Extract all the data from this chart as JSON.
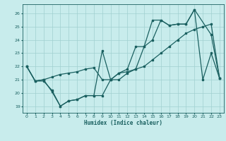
{
  "xlabel": "Humidex (Indice chaleur)",
  "background_color": "#c8ecec",
  "grid_color": "#a0d0d0",
  "line_color": "#1a6060",
  "xlim": [
    -0.5,
    23.5
  ],
  "ylim": [
    18.5,
    26.7
  ],
  "xticks": [
    0,
    1,
    2,
    3,
    4,
    5,
    6,
    7,
    8,
    9,
    10,
    11,
    12,
    13,
    14,
    15,
    16,
    17,
    18,
    19,
    20,
    21,
    22,
    23
  ],
  "yticks": [
    19,
    20,
    21,
    22,
    23,
    24,
    25,
    26
  ],
  "line1_x": [
    0,
    1,
    2,
    3,
    4,
    5,
    6,
    7,
    8,
    9,
    10,
    11,
    12,
    13,
    14,
    15,
    16,
    17,
    18,
    19,
    20,
    22,
    23
  ],
  "line1_y": [
    22.0,
    20.9,
    20.9,
    20.2,
    19.0,
    19.4,
    19.5,
    19.8,
    19.8,
    23.2,
    21.0,
    21.5,
    21.8,
    23.5,
    23.5,
    25.5,
    25.5,
    25.1,
    25.2,
    25.2,
    26.3,
    24.4,
    21.1
  ],
  "line2_x": [
    0,
    1,
    2,
    3,
    4,
    5,
    6,
    7,
    8,
    9,
    10,
    11,
    12,
    13,
    14,
    15,
    16,
    17,
    18,
    19,
    20,
    21,
    22,
    23
  ],
  "line2_y": [
    22.0,
    20.9,
    21.0,
    20.1,
    19.0,
    19.4,
    19.5,
    19.8,
    19.8,
    19.8,
    21.0,
    21.0,
    21.5,
    21.8,
    23.5,
    24.0,
    25.5,
    25.1,
    25.2,
    25.2,
    26.3,
    21.0,
    23.0,
    21.1
  ],
  "line3_x": [
    0,
    1,
    2,
    3,
    4,
    5,
    6,
    7,
    8,
    9,
    10,
    11,
    12,
    13,
    14,
    15,
    16,
    17,
    18,
    19,
    20,
    21,
    22,
    23
  ],
  "line3_y": [
    22.0,
    20.9,
    21.0,
    21.2,
    21.4,
    21.5,
    21.6,
    21.8,
    21.9,
    21.0,
    21.0,
    21.5,
    21.6,
    21.8,
    22.0,
    22.5,
    23.0,
    23.5,
    24.0,
    24.5,
    24.8,
    25.0,
    25.2,
    21.1
  ]
}
